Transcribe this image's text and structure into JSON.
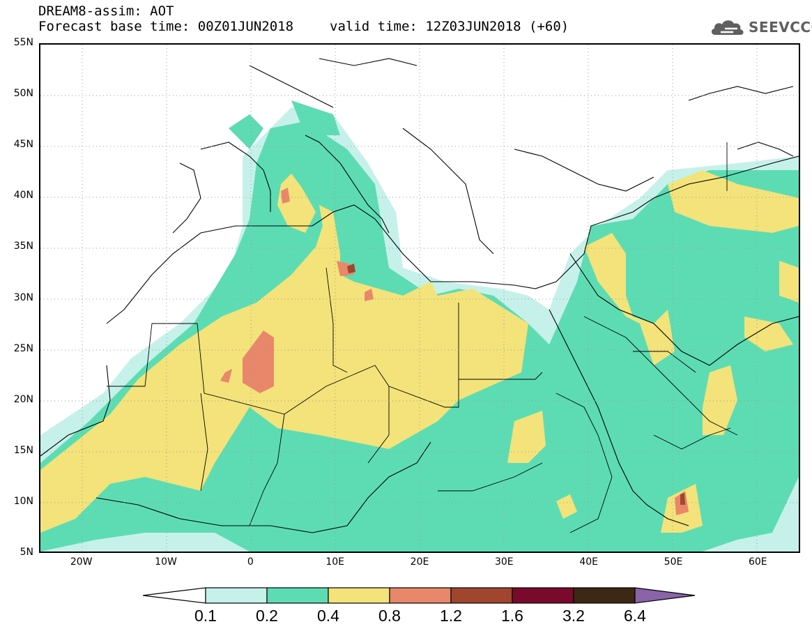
{
  "header": {
    "title": "DREAM8-assim: AOT",
    "base_time": "Forecast base time: 00Z01JUN2018",
    "valid_time": "valid time: 12Z03JUN2018 (+60)"
  },
  "logo": {
    "text": "SEEVCCC",
    "icon": "cloud-logo-icon"
  },
  "map": {
    "lat_labels": [
      "55N",
      "50N",
      "45N",
      "40N",
      "35N",
      "30N",
      "25N",
      "20N",
      "15N",
      "10N",
      "5N"
    ],
    "lon_labels": [
      "20W",
      "10W",
      "0",
      "10E",
      "20E",
      "30E",
      "40E",
      "50E",
      "60E"
    ],
    "lon_range": [
      -25,
      65
    ],
    "lat_range": [
      5,
      55
    ],
    "grid": "dotted"
  },
  "colorbar": {
    "labels": [
      "0.1",
      "0.2",
      "0.4",
      "0.8",
      "1.2",
      "1.6",
      "3.2",
      "6.4"
    ],
    "colors": [
      "#ffffff",
      "#c6f1ea",
      "#5ddcb3",
      "#f3e37a",
      "#e8876a",
      "#a0462f",
      "#7a0a2c",
      "#3d2815",
      "#8a63a8"
    ]
  }
}
